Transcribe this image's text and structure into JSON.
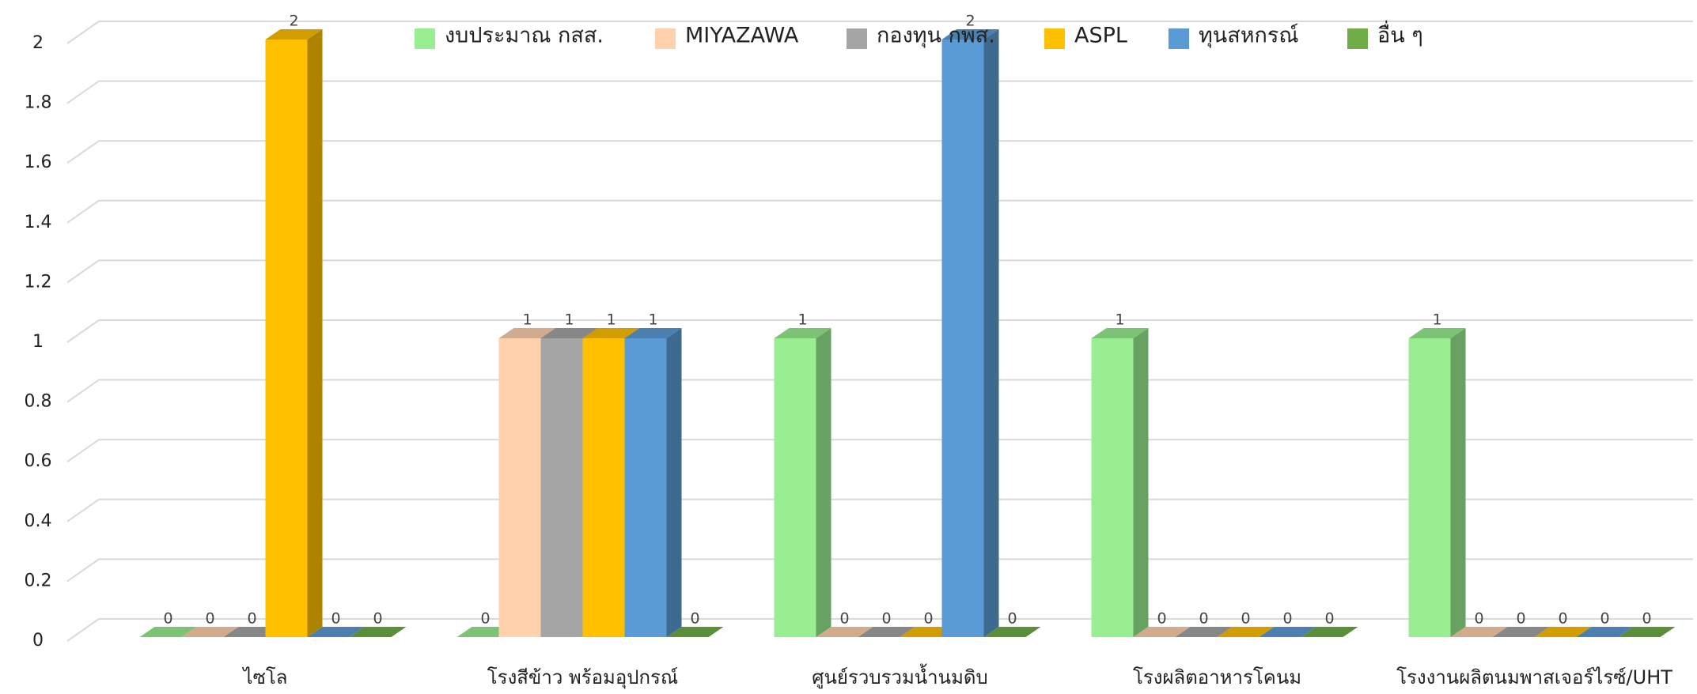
{
  "chart_data": {
    "type": "bar3d",
    "categories": [
      "ไซโล",
      "โรงสีข้าว พร้อมอุปกรณ์",
      "ศูนย์รวบรวมน้ำนมดิบ",
      "โรงผลิตอาหารโคนม",
      "โรงงานผลิตนมพาสเจอร์ไรซ์/UHT"
    ],
    "series": [
      {
        "name": "งบประมาณ กสส.",
        "color": "#98ee90",
        "values": [
          0,
          0,
          1,
          1,
          1
        ]
      },
      {
        "name": "MIYAZAWA",
        "color": "#ffd1ad",
        "values": [
          0,
          1,
          0,
          0,
          0
        ]
      },
      {
        "name": "กองทุน กพส.",
        "color": "#a5a5a5",
        "values": [
          0,
          1,
          0,
          0,
          0
        ]
      },
      {
        "name": "ASPL",
        "color": "#ffc000",
        "values": [
          2,
          1,
          0,
          0,
          0
        ]
      },
      {
        "name": "ทุนสหกรณ์",
        "color": "#5b9bd5",
        "values": [
          0,
          1,
          2,
          0,
          0
        ]
      },
      {
        "name": "อื่น ๆ",
        "color": "#70ad47",
        "values": [
          0,
          0,
          0,
          0,
          0
        ]
      }
    ],
    "ylim": [
      0,
      2
    ],
    "yticks": [
      0,
      0.2,
      0.4,
      0.6,
      0.8,
      1,
      1.2,
      1.4,
      1.6,
      1.8,
      2
    ],
    "grid": true,
    "legend": "top"
  }
}
